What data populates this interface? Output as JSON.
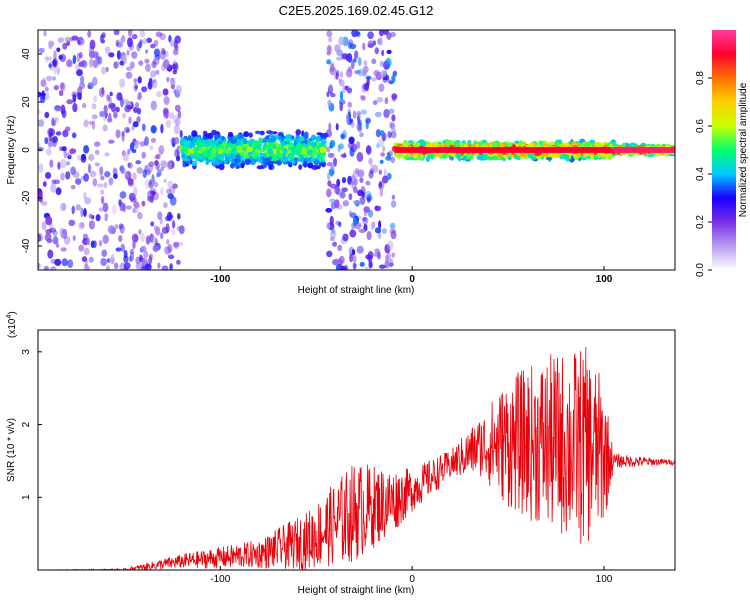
{
  "chart_data": [
    {
      "type": "heatmap",
      "title": "C2E5.2025.169.02.45.G12",
      "xlabel": "Height of straight line (km)",
      "ylabel": "Frequency (Hz)",
      "xlim": [
        -195,
        137
      ],
      "ylim": [
        -50,
        50
      ],
      "xticks": [
        -100,
        0,
        100
      ],
      "xtick_labels": [
        "-100",
        "0",
        "100"
      ],
      "yticks": [
        -40,
        -20,
        0,
        20,
        40
      ],
      "ytick_labels": [
        "-40",
        "-20",
        "0",
        "20",
        "40"
      ],
      "colorbar": {
        "label": "Normalized spectral amplitude",
        "range": [
          0.0,
          1.0
        ],
        "ticks": [
          0.0,
          0.2,
          0.4,
          0.6,
          0.8
        ],
        "tick_labels": [
          "0.0",
          "0.2",
          "0.4",
          "0.6",
          "0.8"
        ],
        "colors": [
          "#ffffff",
          "#b89cf0",
          "#7a2ee6",
          "#1800ff",
          "#00c8ff",
          "#00ff6a",
          "#c8ff00",
          "#ffd000",
          "#ff7000",
          "#ff0030",
          "#ff3ca0"
        ]
      },
      "regions": [
        {
          "x_start": -195,
          "x_end": -120,
          "pattern": "broadband-noise",
          "amplitude": 0.25
        },
        {
          "x_start": -120,
          "x_end": -45,
          "pattern": "band-around-0Hz",
          "band_halfwidth_hz": 8,
          "amplitude": 0.45
        },
        {
          "x_start": -44,
          "x_end": -9,
          "pattern": "broadband-noise",
          "amplitude": 0.3
        },
        {
          "x_start": -9,
          "x_end": 105,
          "pattern": "narrow-line-at-0Hz",
          "band_halfwidth_hz": 4,
          "amplitude": 0.9
        },
        {
          "x_start": 105,
          "x_end": 137,
          "pattern": "steady-line-at-0Hz",
          "band_halfwidth_hz": 2,
          "amplitude": 0.95
        }
      ]
    },
    {
      "type": "line",
      "xlabel": "Height of straight line (km)",
      "ylabel": "SNR (10 * v/v)",
      "y_multiplier": "(x10",
      "y_multiplier_exp": "4",
      "xlim": [
        -195,
        137
      ],
      "ylim": [
        0,
        3.3
      ],
      "xticks": [
        -100,
        0,
        100
      ],
      "xtick_labels": [
        "-100",
        "0",
        "100"
      ],
      "yticks": [
        1,
        2,
        3
      ],
      "ytick_labels": [
        "1",
        "2",
        "3"
      ],
      "color": "#e8000a",
      "series_envelope": [
        {
          "x": -195,
          "mean": 0.0,
          "spread": 0.0
        },
        {
          "x": -150,
          "mean": 0.0,
          "spread": 0.02
        },
        {
          "x": -120,
          "mean": 0.12,
          "spread": 0.1
        },
        {
          "x": -80,
          "mean": 0.22,
          "spread": 0.2
        },
        {
          "x": -55,
          "mean": 0.4,
          "spread": 0.4
        },
        {
          "x": -30,
          "mean": 0.8,
          "spread": 0.7
        },
        {
          "x": -10,
          "mean": 0.95,
          "spread": 0.45
        },
        {
          "x": 0,
          "mean": 1.1,
          "spread": 0.3
        },
        {
          "x": 20,
          "mean": 1.45,
          "spread": 0.2
        },
        {
          "x": 35,
          "mean": 1.7,
          "spread": 0.4
        },
        {
          "x": 50,
          "mean": 1.75,
          "spread": 0.9
        },
        {
          "x": 70,
          "mean": 1.75,
          "spread": 1.2
        },
        {
          "x": 90,
          "mean": 1.7,
          "spread": 1.4
        },
        {
          "x": 100,
          "mean": 1.6,
          "spread": 1.0
        },
        {
          "x": 105,
          "mean": 1.5,
          "spread": 0.1
        },
        {
          "x": 137,
          "mean": 1.48,
          "spread": 0.03
        }
      ]
    }
  ]
}
